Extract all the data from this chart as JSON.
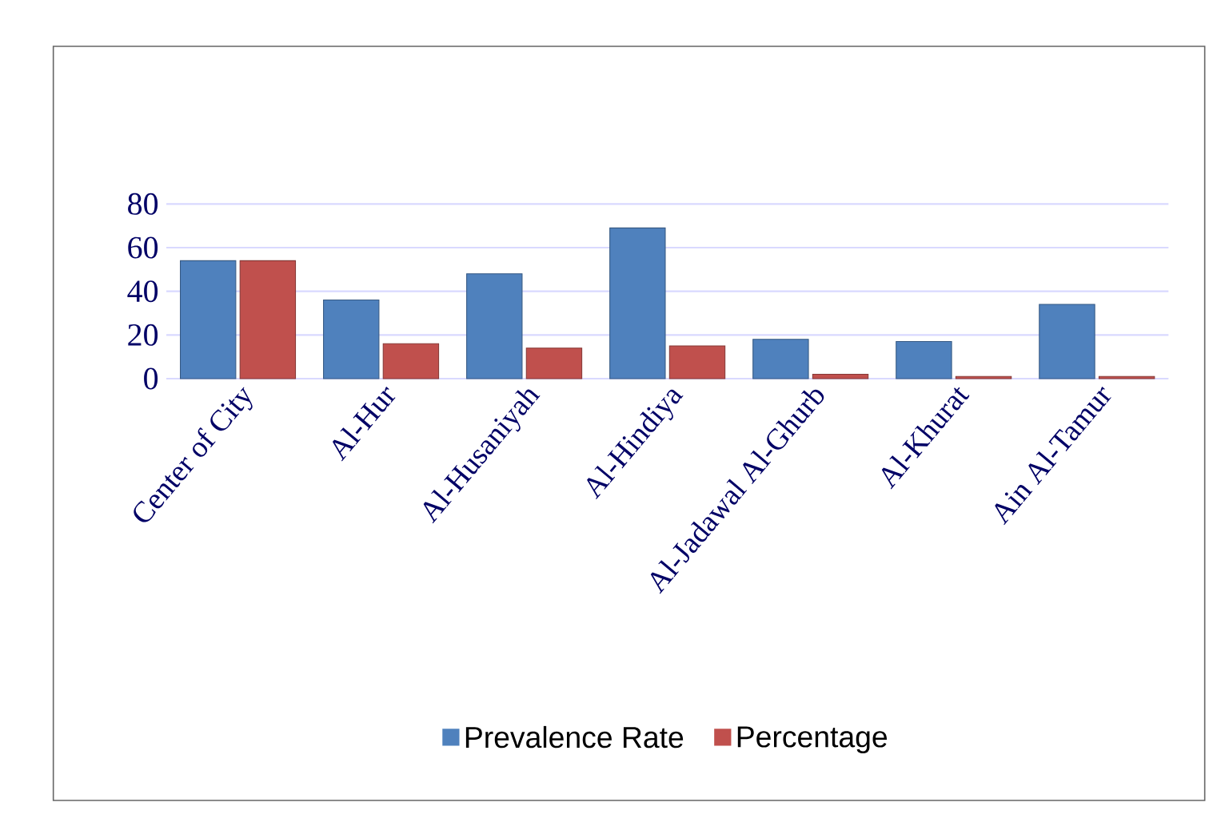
{
  "chart_data": {
    "type": "bar",
    "categories": [
      "Center of City",
      "Al-Hur",
      "Al-Husaniyah",
      "Al-Hindiya",
      "Al-Jadawal Al-Ghurb",
      "Al-Khurat",
      "Ain Al-Tamur"
    ],
    "series": [
      {
        "name": "Prevalence Rate",
        "color": "#4f81bd",
        "values": [
          54,
          36,
          48,
          69,
          18,
          17,
          34
        ]
      },
      {
        "name": "Percentage",
        "color": "#c0504d",
        "values": [
          54,
          16,
          14,
          15,
          2,
          1,
          1
        ]
      }
    ],
    "ylim": [
      0,
      80
    ],
    "yticks": [
      0,
      20,
      40,
      60,
      80
    ],
    "grid": "y",
    "legend": "bottom"
  }
}
